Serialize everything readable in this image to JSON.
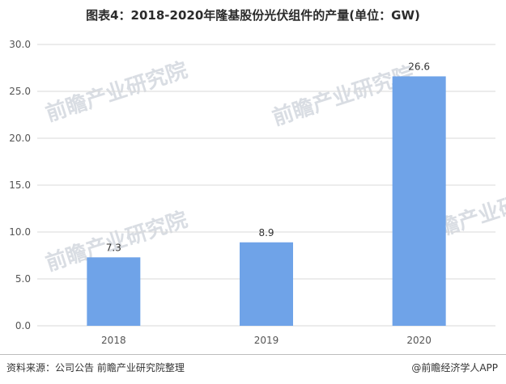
{
  "chart_data": {
    "type": "bar",
    "title": "图表4：2018-2020年隆基股份光伏组件的产量(单位：GW)",
    "categories": [
      "2018",
      "2019",
      "2020"
    ],
    "values": [
      7.3,
      8.9,
      26.6
    ],
    "value_labels": [
      "7.3",
      "8.9",
      "26.6"
    ],
    "ylim": [
      0,
      30
    ],
    "yticks": [
      "0.0",
      "5.0",
      "10.0",
      "15.0",
      "20.0",
      "25.0",
      "30.0"
    ],
    "ytick_values": [
      0,
      5,
      10,
      15,
      20,
      25,
      30
    ],
    "xlabel": "",
    "ylabel": "",
    "grid": true,
    "bar_color": "#6fa3e8"
  },
  "footer": {
    "source": "资料来源：公司公告 前瞻产业研究院整理",
    "brand": "@前瞻经济学人APP"
  },
  "watermark": {
    "text": "前瞻产业研究院"
  }
}
